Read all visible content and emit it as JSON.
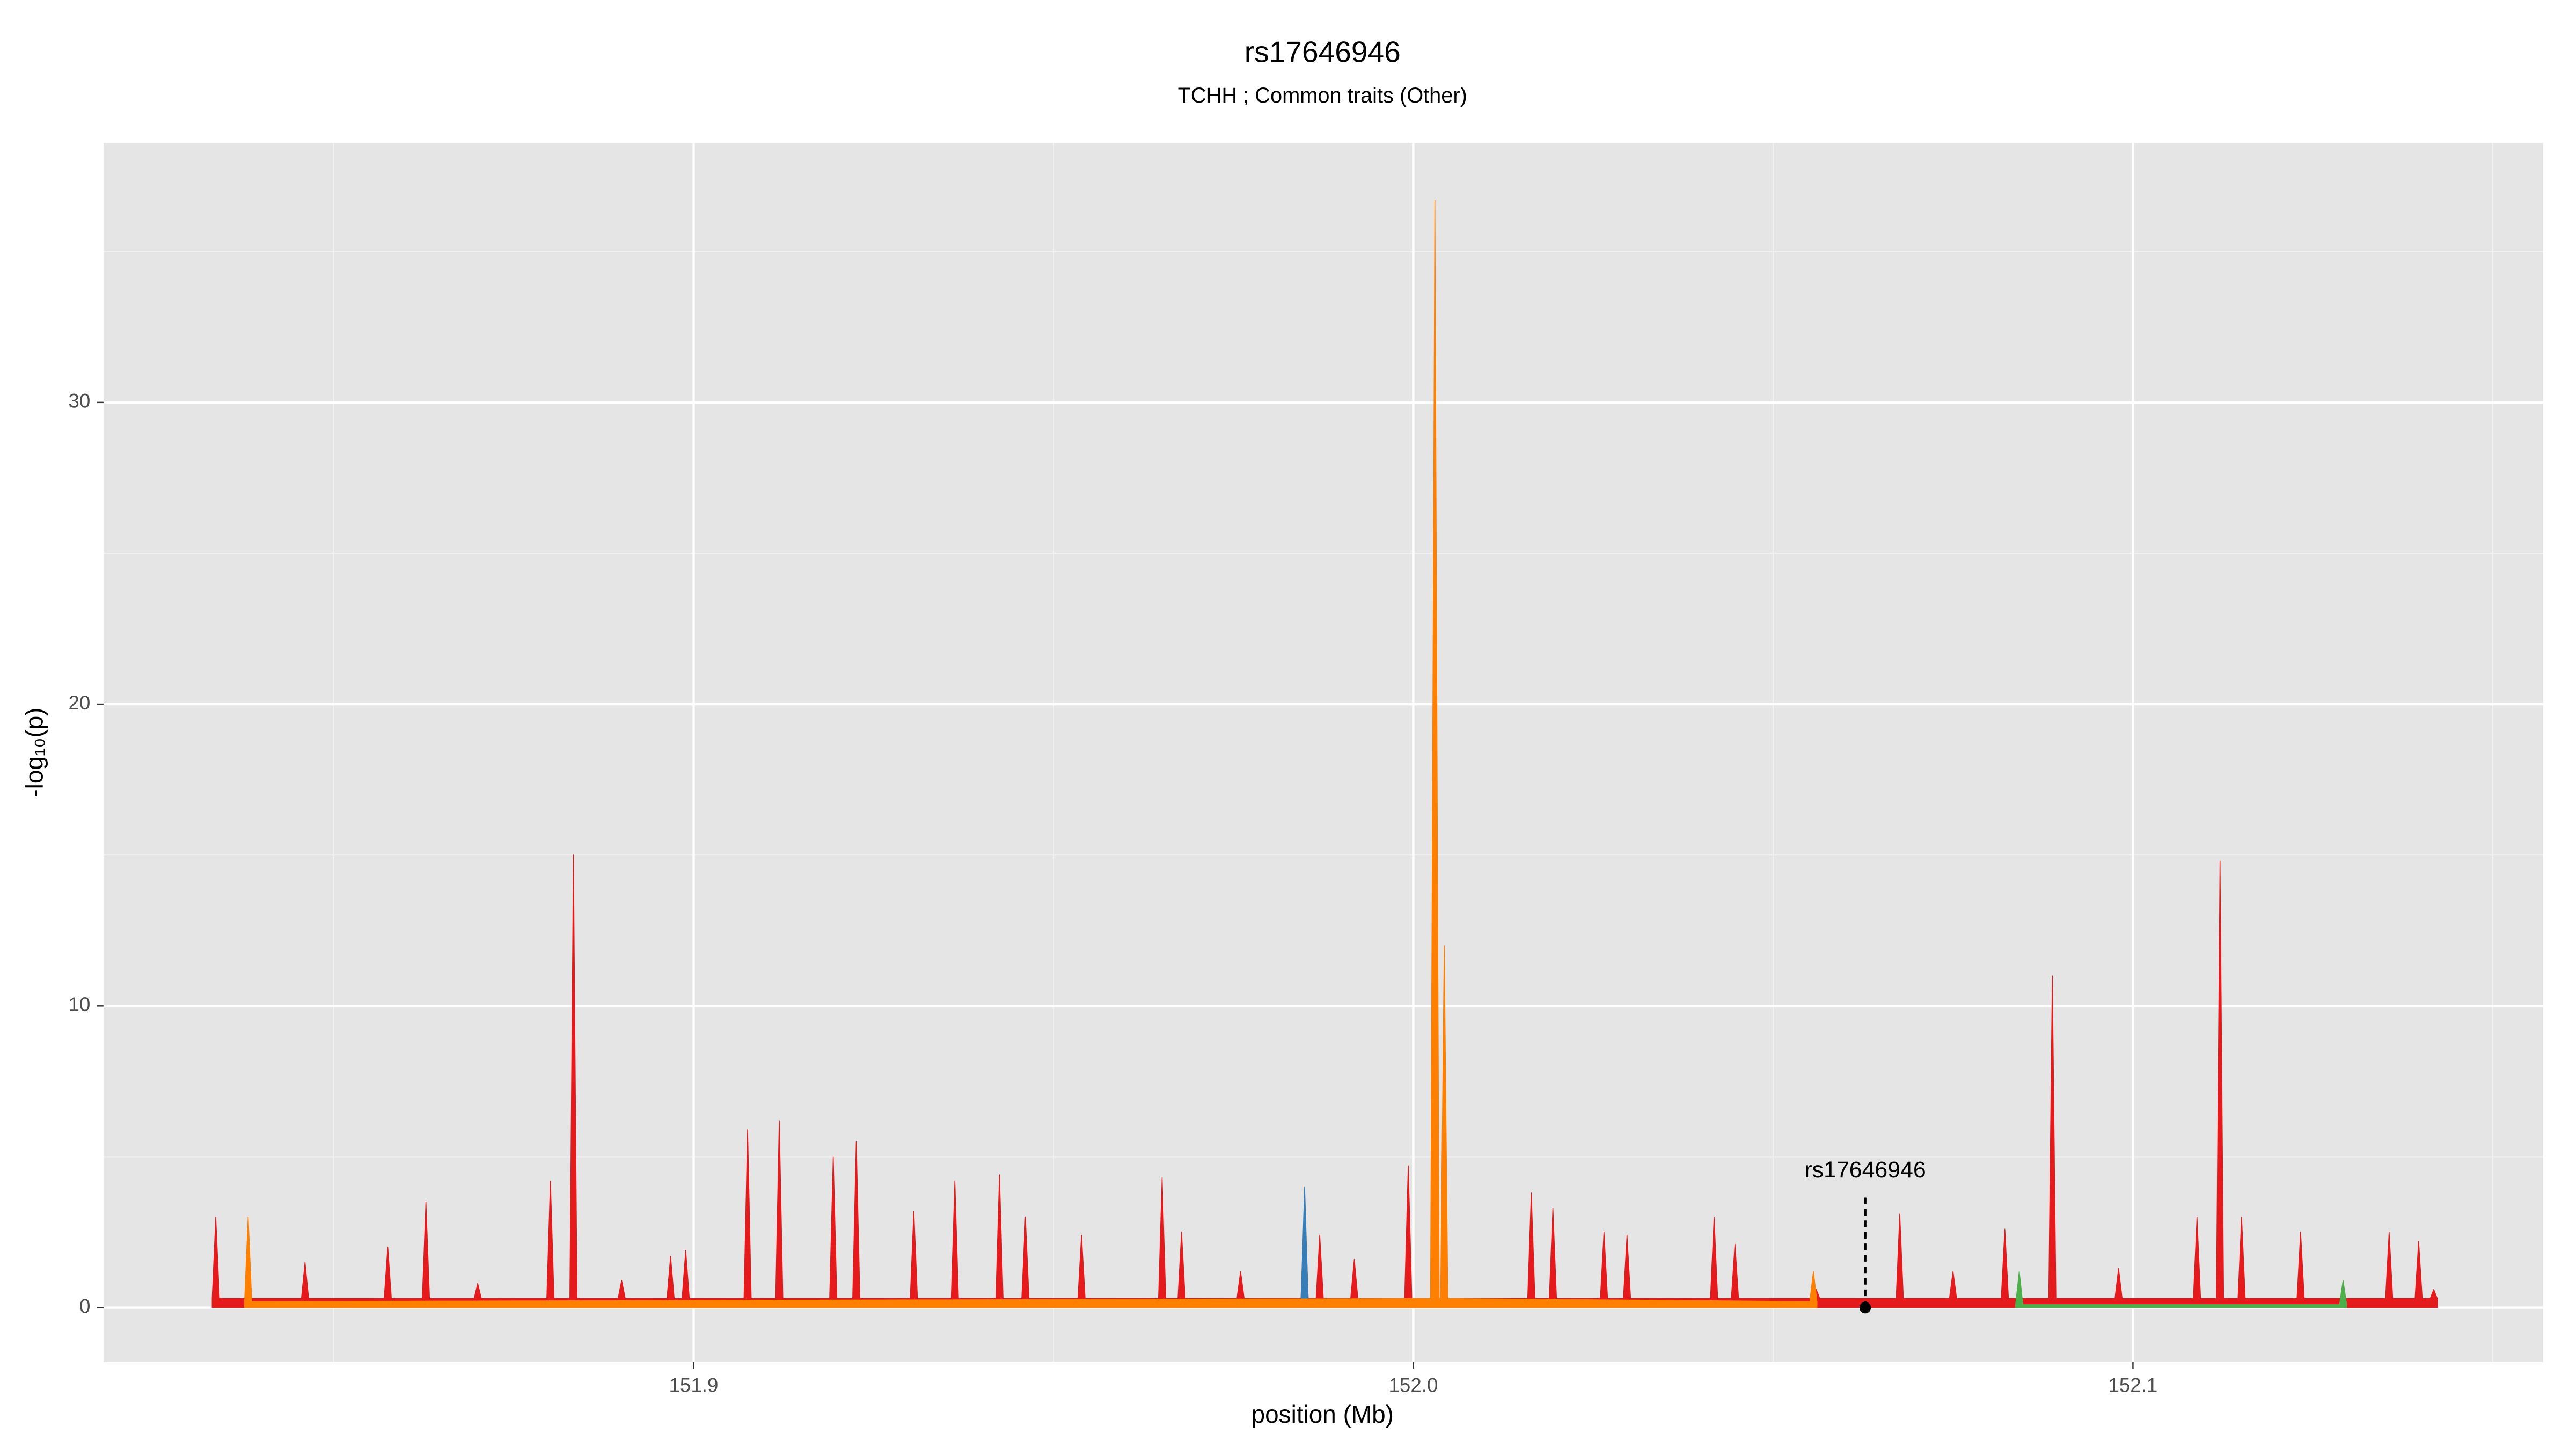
{
  "chart_data": {
    "type": "area",
    "title": "rs17646946",
    "subtitle": "TCHH ; Common traits (Other)",
    "x_label": "position (Mb)",
    "y_label": "-log₁₀(p)",
    "xlim": [
      151.818,
      152.157
    ],
    "ylim": [
      -1.8,
      38.6
    ],
    "xticks": [
      151.9,
      {
        "value": 152,
        "label": "152.0"
      },
      152.1
    ],
    "yticks": [
      0,
      10,
      20,
      30
    ],
    "grid": true,
    "series": [
      {
        "name": "red",
        "color": "#e41a1c",
        "x": [
          151.8331,
          151.8336,
          151.8341,
          151.8455,
          151.846,
          151.8465,
          151.857,
          151.8575,
          151.858,
          151.8623,
          151.8628,
          151.8633,
          151.8695,
          151.87,
          151.8705,
          151.8796,
          151.8801,
          151.8806,
          151.8828,
          151.8833,
          151.8838,
          151.8895,
          151.89,
          151.8905,
          151.8963,
          151.8968,
          151.8973,
          151.8984,
          151.8989,
          151.8994,
          151.907,
          151.9075,
          151.908,
          151.9114,
          151.9119,
          151.9124,
          151.9189,
          151.9194,
          151.9199,
          151.9221,
          151.9226,
          151.9231,
          151.9301,
          151.9306,
          151.9311,
          151.9358,
          151.9363,
          151.9368,
          151.942,
          151.9425,
          151.943,
          151.9456,
          151.9461,
          151.9466,
          151.9534,
          151.9539,
          151.9544,
          151.9646,
          151.9651,
          151.9656,
          151.9673,
          151.9678,
          151.9683,
          151.9755,
          151.976,
          151.9765,
          151.9844,
          151.9849,
          151.9854,
          151.9865,
          151.987,
          151.9875,
          151.9913,
          151.9918,
          151.9923,
          151.9988,
          151.9993,
          151.9998,
          152.0025,
          152.003,
          152.0035,
          152.0159,
          152.0164,
          152.0169,
          152.0189,
          152.0194,
          152.0199,
          152.026,
          152.0265,
          152.027,
          152.0292,
          152.0297,
          152.0302,
          152.0413,
          152.0418,
          152.0423,
          152.0442,
          152.0447,
          152.0452,
          152.0555,
          152.056,
          152.0565,
          152.0671,
          152.0676,
          152.0681,
          152.0745,
          152.075,
          152.0755,
          152.0817,
          152.0822,
          152.0827,
          152.0883,
          152.0888,
          152.0893,
          152.0975,
          152.098,
          152.0985,
          152.1084,
          152.1089,
          152.1094,
          152.1116,
          152.1121,
          152.1126,
          152.1146,
          152.1151,
          152.1156,
          152.1228,
          152.1233,
          152.1238,
          152.1351,
          152.1356,
          152.1361,
          152.1392,
          152.1397,
          152.1402,
          152.1413,
          152.1418,
          152.1423
        ],
        "values": [
          0.3,
          3,
          0.3,
          0.3,
          1.5,
          0.3,
          0.3,
          2,
          0.3,
          0.3,
          3.5,
          0.3,
          0.3,
          0.8,
          0.3,
          0.3,
          4.2,
          0.3,
          0.3,
          15,
          0.3,
          0.3,
          0.9,
          0.3,
          0.3,
          1.7,
          0.3,
          0.3,
          1.9,
          0.3,
          0.3,
          5.9,
          0.3,
          0.3,
          6.2,
          0.3,
          0.3,
          5,
          0.3,
          0.3,
          5.5,
          0.3,
          0.3,
          3.2,
          0.3,
          0.3,
          4.2,
          0.3,
          0.3,
          4.4,
          0.3,
          0.3,
          3,
          0.3,
          0.3,
          2.4,
          0.3,
          0.3,
          4.3,
          0.3,
          0.3,
          2.5,
          0.3,
          0.3,
          1.2,
          0.3,
          0.3,
          3.5,
          0.3,
          0.3,
          2.4,
          0.3,
          0.3,
          1.6,
          0.3,
          0.3,
          4.7,
          0.3,
          0.3,
          20,
          0.3,
          0.3,
          3.8,
          0.3,
          0.3,
          3.3,
          0.3,
          0.3,
          2.5,
          0.3,
          0.3,
          2.4,
          0.3,
          0.3,
          3,
          0.3,
          0.3,
          2.1,
          0.3,
          0.3,
          0.6,
          0.3,
          0.3,
          3.1,
          0.3,
          0.3,
          1.2,
          0.3,
          0.3,
          2.6,
          0.3,
          0.3,
          11,
          0.3,
          0.3,
          1.3,
          0.3,
          0.3,
          3,
          0.3,
          0.3,
          14.8,
          0.3,
          0.3,
          3,
          0.3,
          0.3,
          2.5,
          0.3,
          0.3,
          2.5,
          0.3,
          0.3,
          2.2,
          0.3,
          0.3,
          0.6,
          0.3
        ]
      },
      {
        "name": "green",
        "color": "#4daf4a",
        "x": [
          152.0837,
          152.0842,
          152.0847,
          152.1287,
          152.1292,
          152.1297
        ],
        "values": [
          0.1,
          1.2,
          0.1,
          0.1,
          0.9,
          0.1
        ]
      },
      {
        "name": "blue",
        "color": "#377eb8",
        "x": [
          151.9844,
          151.9849,
          151.9854
        ],
        "values": [
          0.2,
          4,
          0.2
        ]
      },
      {
        "name": "orange",
        "color": "#ff7f00",
        "x": [
          151.8376,
          151.8381,
          151.8386,
          152.0024,
          152.003,
          152.0036,
          152.0038,
          152.0043,
          152.0048,
          152.0551,
          152.0556,
          152.0561
        ],
        "values": [
          0.2,
          3,
          0.2,
          0.3,
          36.7,
          0.3,
          0.3,
          12,
          0.3,
          0.2,
          1.2,
          0.2
        ]
      }
    ],
    "annotations": [
      {
        "text": "rs17646946",
        "x": 152.0628,
        "y": 0
      }
    ]
  }
}
